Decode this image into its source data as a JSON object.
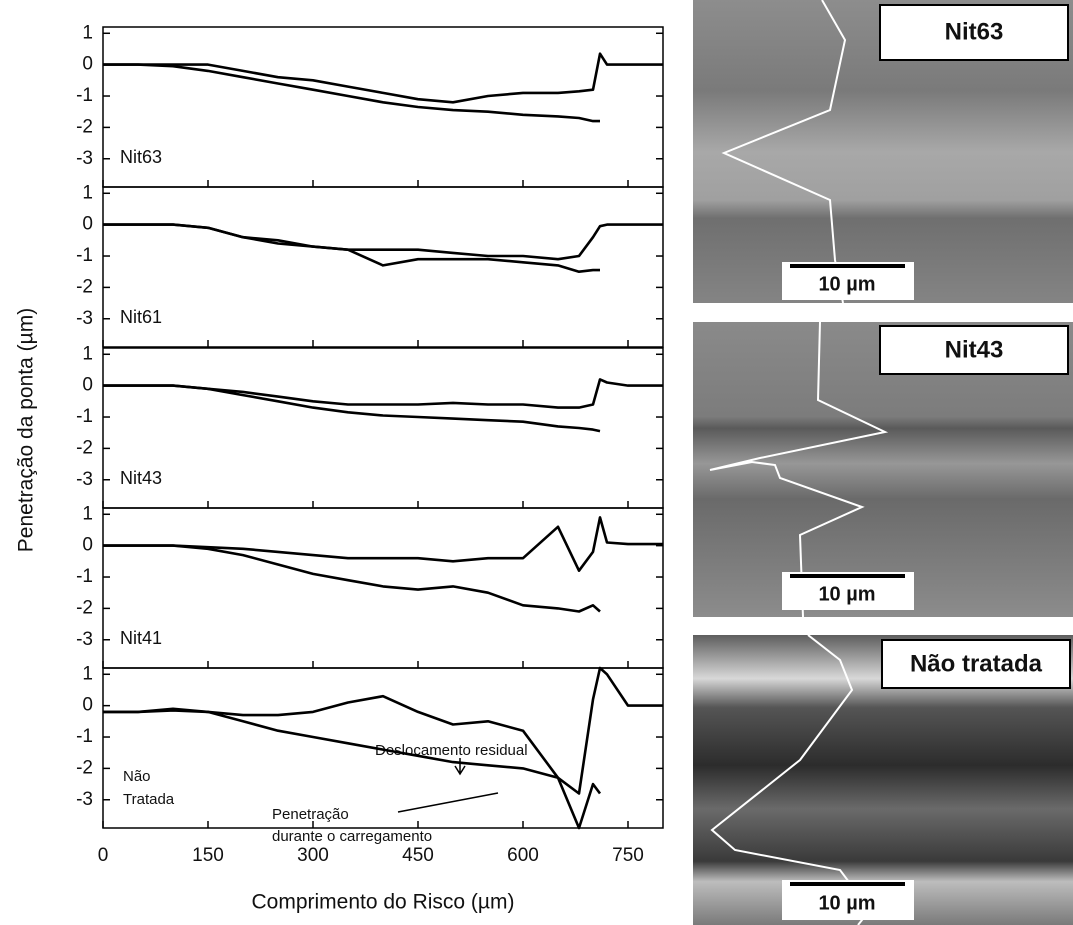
{
  "figure": {
    "ylabel": "Penetração da ponta  (µm)",
    "xlabel": "Comprimento do Risco  (µm)"
  },
  "micrographs": [
    {
      "label": "Nit63",
      "scale_bar": "10 µm"
    },
    {
      "label": "Nit43",
      "scale_bar": "10 µm"
    },
    {
      "label": "Não tratada",
      "scale_bar": "10 µm"
    }
  ],
  "chart_data": [
    {
      "type": "line",
      "label": [
        "Nit63"
      ],
      "x": [
        0,
        50,
        100,
        150,
        200,
        250,
        300,
        350,
        400,
        450,
        500,
        550,
        600,
        650,
        680,
        700,
        710,
        720,
        750,
        800
      ],
      "series": [
        {
          "color": "#000000",
          "values": [
            0,
            0,
            0,
            0,
            -0.2,
            -0.4,
            -0.5,
            -0.7,
            -0.9,
            -1.1,
            -1.2,
            -1.0,
            -0.9,
            -0.9,
            -0.85,
            -0.8,
            0.35,
            0,
            0,
            0
          ]
        },
        {
          "color": "#000000",
          "values": [
            0,
            0,
            -0.05,
            -0.2,
            -0.4,
            -0.6,
            -0.8,
            -1.0,
            -1.2,
            -1.35,
            -1.45,
            -1.5,
            -1.6,
            -1.65,
            -1.7,
            -1.8,
            -1.8,
            null,
            null,
            null
          ]
        }
      ],
      "xlim": [
        0,
        800
      ],
      "ylim": [
        -3.9,
        1.2
      ],
      "yticks": [
        -3,
        -2,
        -1,
        0,
        1
      ]
    },
    {
      "type": "line",
      "label": [
        "Nit61"
      ],
      "x": [
        0,
        50,
        100,
        150,
        200,
        250,
        300,
        350,
        400,
        450,
        500,
        550,
        600,
        650,
        680,
        700,
        710,
        720,
        750,
        800
      ],
      "series": [
        {
          "color": "#000000",
          "values": [
            0,
            0,
            0,
            -0.1,
            -0.4,
            -0.5,
            -0.7,
            -0.8,
            -0.8,
            -0.8,
            -0.9,
            -1.0,
            -1.0,
            -1.1,
            -1.0,
            -0.4,
            -0.05,
            0,
            0,
            0
          ]
        },
        {
          "color": "#000000",
          "values": [
            0,
            0,
            0,
            -0.1,
            -0.4,
            -0.6,
            -0.7,
            -0.8,
            -1.3,
            -1.1,
            -1.1,
            -1.1,
            -1.2,
            -1.3,
            -1.5,
            -1.45,
            -1.45,
            null,
            null,
            null
          ]
        }
      ],
      "xlim": [
        0,
        800
      ],
      "ylim": [
        -3.9,
        1.2
      ],
      "yticks": [
        -3,
        -2,
        -1,
        0,
        1
      ]
    },
    {
      "type": "line",
      "label": [
        "Nit43"
      ],
      "x": [
        0,
        50,
        100,
        150,
        200,
        250,
        300,
        350,
        400,
        450,
        500,
        550,
        600,
        650,
        680,
        700,
        710,
        720,
        750,
        800
      ],
      "series": [
        {
          "color": "#000000",
          "values": [
            0,
            0,
            0,
            -0.1,
            -0.2,
            -0.35,
            -0.5,
            -0.6,
            -0.6,
            -0.6,
            -0.55,
            -0.6,
            -0.6,
            -0.7,
            -0.7,
            -0.6,
            0.2,
            0.1,
            0,
            0
          ]
        },
        {
          "color": "#000000",
          "values": [
            0,
            0,
            0,
            -0.1,
            -0.3,
            -0.5,
            -0.7,
            -0.85,
            -0.95,
            -1.0,
            -1.05,
            -1.1,
            -1.15,
            -1.3,
            -1.35,
            -1.4,
            -1.45,
            null,
            null,
            null
          ]
        }
      ],
      "xlim": [
        0,
        800
      ],
      "ylim": [
        -3.9,
        1.2
      ],
      "yticks": [
        -3,
        -2,
        -1,
        0,
        1
      ]
    },
    {
      "type": "line",
      "label": [
        "Nit41"
      ],
      "x": [
        0,
        50,
        100,
        150,
        200,
        250,
        300,
        350,
        400,
        450,
        500,
        550,
        600,
        650,
        680,
        700,
        710,
        720,
        750,
        800
      ],
      "series": [
        {
          "color": "#000000",
          "values": [
            0,
            0,
            0,
            -0.05,
            -0.1,
            -0.2,
            -0.3,
            -0.4,
            -0.4,
            -0.4,
            -0.5,
            -0.4,
            -0.4,
            0.6,
            -0.8,
            -0.2,
            0.9,
            0.1,
            0.05,
            0.05
          ]
        },
        {
          "color": "#000000",
          "values": [
            0,
            0,
            0,
            -0.1,
            -0.3,
            -0.6,
            -0.9,
            -1.1,
            -1.3,
            -1.4,
            -1.3,
            -1.5,
            -1.9,
            -2.0,
            -2.1,
            -1.9,
            -2.1,
            null,
            null,
            null
          ]
        }
      ],
      "xlim": [
        0,
        800
      ],
      "ylim": [
        -3.9,
        1.2
      ],
      "yticks": [
        -3,
        -2,
        -1,
        0,
        1
      ]
    },
    {
      "type": "line",
      "label": [
        "Não",
        "Tratada"
      ],
      "annotations": [
        "Deslocamento residual",
        "Penetração",
        "durante o carregamento"
      ],
      "x": [
        0,
        50,
        100,
        150,
        200,
        250,
        300,
        350,
        400,
        450,
        500,
        550,
        600,
        650,
        680,
        700,
        710,
        720,
        750,
        800
      ],
      "series": [
        {
          "color": "#000000",
          "values": [
            -0.2,
            -0.2,
            -0.1,
            -0.2,
            -0.3,
            -0.3,
            -0.2,
            0.1,
            0.3,
            -0.2,
            -0.6,
            -0.5,
            -0.8,
            -2.3,
            -2.8,
            0.2,
            1.2,
            1.0,
            0,
            0
          ]
        },
        {
          "color": "#000000",
          "values": [
            -0.2,
            -0.2,
            -0.15,
            -0.2,
            -0.5,
            -0.8,
            -1.0,
            -1.2,
            -1.4,
            -1.6,
            -1.8,
            -1.9,
            -2.0,
            -2.3,
            -3.9,
            -2.5,
            -2.8,
            null,
            null,
            null
          ]
        }
      ],
      "xlim": [
        0,
        800
      ],
      "ylim": [
        -3.9,
        1.2
      ],
      "yticks": [
        -3,
        -2,
        -1,
        0,
        1
      ],
      "xticks": [
        0,
        150,
        300,
        450,
        600,
        750
      ]
    }
  ]
}
